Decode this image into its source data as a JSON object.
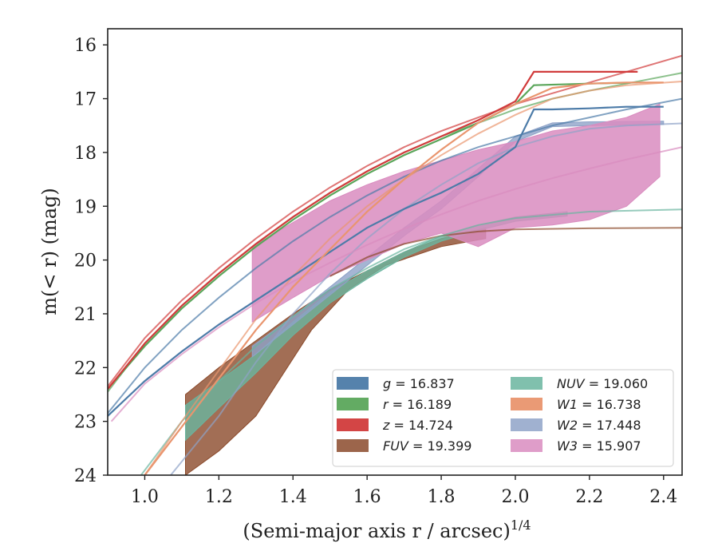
{
  "chart_data": {
    "type": "line",
    "xlabel": "(Semi-major axis r / arcsec)",
    "xlabel_exponent": "1/4",
    "ylabel": "m(< r) (mag)",
    "xlim": [
      0.9,
      2.45
    ],
    "ylim": [
      24,
      15.7
    ],
    "y_inverted": true,
    "xticks": [
      "1.0",
      "1.2",
      "1.4",
      "1.6",
      "1.8",
      "2.0",
      "2.2",
      "2.4"
    ],
    "xtick_values": [
      1.0,
      1.2,
      1.4,
      1.6,
      1.8,
      2.0,
      2.2,
      2.4
    ],
    "yticks": [
      "16",
      "17",
      "18",
      "19",
      "20",
      "21",
      "22",
      "23",
      "24"
    ],
    "ytick_values": [
      16,
      17,
      18,
      19,
      20,
      21,
      22,
      23,
      24
    ],
    "grid": false,
    "legend_placement": "lower-right",
    "series": [
      {
        "band": "g",
        "value": "16.837",
        "color": "#4c7ba8",
        "data": [
          [
            0.9,
            22.9
          ],
          [
            1.0,
            22.25
          ],
          [
            1.1,
            21.7
          ],
          [
            1.2,
            21.2
          ],
          [
            1.3,
            20.75
          ],
          [
            1.4,
            20.3
          ],
          [
            1.5,
            19.85
          ],
          [
            1.6,
            19.4
          ],
          [
            1.7,
            19.05
          ],
          [
            1.8,
            18.75
          ],
          [
            1.9,
            18.4
          ],
          [
            2.0,
            17.9
          ],
          [
            2.05,
            17.2
          ],
          [
            2.1,
            17.2
          ],
          [
            2.2,
            17.18
          ],
          [
            2.3,
            17.15
          ],
          [
            2.4,
            17.15
          ]
        ],
        "model": [
          [
            0.9,
            22.85
          ],
          [
            1.0,
            22.0
          ],
          [
            1.1,
            21.3
          ],
          [
            1.2,
            20.7
          ],
          [
            1.3,
            20.15
          ],
          [
            1.4,
            19.65
          ],
          [
            1.5,
            19.2
          ],
          [
            1.6,
            18.8
          ],
          [
            1.7,
            18.45
          ],
          [
            1.8,
            18.15
          ],
          [
            1.9,
            17.9
          ],
          [
            2.0,
            17.7
          ],
          [
            2.1,
            17.5
          ],
          [
            2.2,
            17.35
          ],
          [
            2.3,
            17.2
          ],
          [
            2.45,
            17.0
          ]
        ]
      },
      {
        "band": "r",
        "value": "16.189",
        "color": "#5ba65b",
        "data": [
          [
            0.9,
            22.4
          ],
          [
            1.0,
            21.6
          ],
          [
            1.1,
            20.9
          ],
          [
            1.2,
            20.3
          ],
          [
            1.3,
            19.75
          ],
          [
            1.4,
            19.25
          ],
          [
            1.5,
            18.8
          ],
          [
            1.6,
            18.4
          ],
          [
            1.7,
            18.05
          ],
          [
            1.8,
            17.75
          ],
          [
            1.9,
            17.45
          ],
          [
            2.0,
            17.1
          ],
          [
            2.05,
            16.75
          ],
          [
            2.2,
            16.72
          ],
          [
            2.33,
            16.7
          ]
        ],
        "model": [
          [
            0.9,
            22.45
          ],
          [
            1.0,
            21.55
          ],
          [
            1.1,
            20.85
          ],
          [
            1.2,
            20.25
          ],
          [
            1.3,
            19.7
          ],
          [
            1.4,
            19.2
          ],
          [
            1.5,
            18.75
          ],
          [
            1.6,
            18.35
          ],
          [
            1.7,
            18.0
          ],
          [
            1.8,
            17.7
          ],
          [
            1.9,
            17.45
          ],
          [
            2.0,
            17.2
          ],
          [
            2.1,
            17.0
          ],
          [
            2.2,
            16.85
          ],
          [
            2.3,
            16.72
          ],
          [
            2.45,
            16.52
          ]
        ]
      },
      {
        "band": "z",
        "value": "14.724",
        "color": "#d13b3b",
        "data": [
          [
            0.9,
            22.4
          ],
          [
            1.0,
            21.55
          ],
          [
            1.1,
            20.85
          ],
          [
            1.2,
            20.25
          ],
          [
            1.3,
            19.7
          ],
          [
            1.4,
            19.2
          ],
          [
            1.5,
            18.75
          ],
          [
            1.6,
            18.35
          ],
          [
            1.7,
            18.0
          ],
          [
            1.8,
            17.7
          ],
          [
            1.9,
            17.4
          ],
          [
            2.0,
            17.05
          ],
          [
            2.05,
            16.5
          ],
          [
            2.33,
            16.5
          ]
        ],
        "model": [
          [
            0.9,
            22.35
          ],
          [
            1.0,
            21.45
          ],
          [
            1.1,
            20.75
          ],
          [
            1.2,
            20.15
          ],
          [
            1.3,
            19.6
          ],
          [
            1.4,
            19.1
          ],
          [
            1.5,
            18.65
          ],
          [
            1.6,
            18.25
          ],
          [
            1.7,
            17.9
          ],
          [
            1.8,
            17.6
          ],
          [
            1.9,
            17.35
          ],
          [
            2.0,
            17.1
          ],
          [
            2.1,
            16.9
          ],
          [
            2.2,
            16.7
          ],
          [
            2.3,
            16.5
          ],
          [
            2.45,
            16.2
          ]
        ]
      },
      {
        "band": "FUV",
        "value": "19.399",
        "color": "#8b4a2b",
        "band_upper": [
          [
            1.11,
            22.5
          ],
          [
            1.2,
            22.0
          ],
          [
            1.3,
            21.5
          ],
          [
            1.4,
            21.0
          ],
          [
            1.5,
            20.55
          ],
          [
            1.6,
            20.2
          ],
          [
            1.7,
            19.85
          ],
          [
            1.8,
            19.6
          ],
          [
            1.92,
            19.4
          ]
        ],
        "band_lower": [
          [
            1.11,
            24.0
          ],
          [
            1.2,
            23.55
          ],
          [
            1.3,
            22.9
          ],
          [
            1.45,
            21.3
          ],
          [
            1.55,
            20.55
          ],
          [
            1.65,
            20.1
          ],
          [
            1.8,
            19.75
          ],
          [
            1.92,
            19.6
          ]
        ],
        "model": [
          [
            1.5,
            20.3
          ],
          [
            1.6,
            19.95
          ],
          [
            1.7,
            19.7
          ],
          [
            1.8,
            19.55
          ],
          [
            1.9,
            19.47
          ],
          [
            2.0,
            19.43
          ],
          [
            2.2,
            19.41
          ],
          [
            2.45,
            19.4
          ]
        ]
      },
      {
        "band": "NUV",
        "value": "19.060",
        "color": "#6ab59f",
        "band_upper": [
          [
            1.11,
            22.7
          ],
          [
            1.2,
            22.25
          ],
          [
            1.3,
            21.75
          ],
          [
            1.4,
            21.15
          ],
          [
            1.5,
            20.6
          ],
          [
            1.6,
            20.2
          ],
          [
            1.7,
            19.85
          ],
          [
            1.8,
            19.55
          ],
          [
            1.9,
            19.35
          ],
          [
            2.0,
            19.2
          ],
          [
            2.14,
            19.1
          ]
        ],
        "band_lower": [
          [
            1.11,
            23.35
          ],
          [
            1.2,
            22.75
          ],
          [
            1.3,
            22.1
          ],
          [
            1.4,
            21.4
          ],
          [
            1.5,
            20.8
          ],
          [
            1.6,
            20.35
          ],
          [
            1.7,
            19.95
          ],
          [
            1.8,
            19.65
          ],
          [
            1.9,
            19.45
          ],
          [
            2.0,
            19.28
          ],
          [
            2.14,
            19.18
          ]
        ],
        "model": [
          [
            0.99,
            24.0
          ],
          [
            1.1,
            23.0
          ],
          [
            1.2,
            22.25
          ],
          [
            1.3,
            21.6
          ],
          [
            1.4,
            21.05
          ],
          [
            1.5,
            20.55
          ],
          [
            1.6,
            20.15
          ],
          [
            1.7,
            19.8
          ],
          [
            1.8,
            19.55
          ],
          [
            1.9,
            19.35
          ],
          [
            2.0,
            19.22
          ],
          [
            2.2,
            19.1
          ],
          [
            2.45,
            19.06
          ]
        ]
      },
      {
        "band": "W1",
        "value": "16.738",
        "color": "#e9956e",
        "data": [
          [
            1.0,
            24.0
          ],
          [
            1.1,
            23.1
          ],
          [
            1.2,
            22.2
          ],
          [
            1.3,
            21.3
          ],
          [
            1.4,
            20.5
          ],
          [
            1.5,
            19.8
          ],
          [
            1.6,
            19.1
          ],
          [
            1.7,
            18.5
          ],
          [
            1.8,
            17.95
          ],
          [
            1.9,
            17.45
          ],
          [
            2.0,
            17.1
          ],
          [
            2.1,
            16.8
          ],
          [
            2.2,
            16.72
          ],
          [
            2.3,
            16.7
          ],
          [
            2.4,
            16.7
          ]
        ],
        "model": [
          [
            1.0,
            24.0
          ],
          [
            1.1,
            23.0
          ],
          [
            1.2,
            22.05
          ],
          [
            1.3,
            21.1
          ],
          [
            1.4,
            20.3
          ],
          [
            1.5,
            19.6
          ],
          [
            1.6,
            19.0
          ],
          [
            1.7,
            18.5
          ],
          [
            1.8,
            18.05
          ],
          [
            1.9,
            17.65
          ],
          [
            2.0,
            17.3
          ],
          [
            2.1,
            17.0
          ],
          [
            2.2,
            16.85
          ],
          [
            2.3,
            16.75
          ],
          [
            2.45,
            16.68
          ]
        ]
      },
      {
        "band": "W2",
        "value": "17.448",
        "color": "#8fa3c8",
        "band_upper": [
          [
            1.29,
            21.6
          ],
          [
            1.4,
            21.05
          ],
          [
            1.5,
            20.5
          ],
          [
            1.6,
            19.95
          ],
          [
            1.7,
            19.4
          ],
          [
            1.8,
            18.9
          ],
          [
            1.9,
            18.3
          ],
          [
            2.0,
            17.7
          ],
          [
            2.1,
            17.45
          ],
          [
            2.2,
            17.43
          ],
          [
            2.4,
            17.42
          ]
        ],
        "band_lower": [
          [
            1.29,
            21.8
          ],
          [
            1.4,
            21.2
          ],
          [
            1.5,
            20.65
          ],
          [
            1.6,
            20.1
          ],
          [
            1.7,
            19.55
          ],
          [
            1.8,
            19.05
          ],
          [
            1.9,
            18.45
          ],
          [
            2.0,
            17.8
          ],
          [
            2.1,
            17.52
          ],
          [
            2.2,
            17.5
          ],
          [
            2.4,
            17.48
          ]
        ],
        "model": [
          [
            1.07,
            24.0
          ],
          [
            1.2,
            22.9
          ],
          [
            1.3,
            21.9
          ],
          [
            1.4,
            21.0
          ],
          [
            1.5,
            20.25
          ],
          [
            1.6,
            19.6
          ],
          [
            1.7,
            19.05
          ],
          [
            1.8,
            18.6
          ],
          [
            1.9,
            18.2
          ],
          [
            2.0,
            17.9
          ],
          [
            2.1,
            17.7
          ],
          [
            2.2,
            17.56
          ],
          [
            2.3,
            17.5
          ],
          [
            2.45,
            17.46
          ]
        ]
      },
      {
        "band": "W3",
        "value": "15.907",
        "color": "#d98cbf",
        "band_upper": [
          [
            1.29,
            19.75
          ],
          [
            1.4,
            19.3
          ],
          [
            1.5,
            18.9
          ],
          [
            1.6,
            18.6
          ],
          [
            1.7,
            18.35
          ],
          [
            1.8,
            18.15
          ],
          [
            1.9,
            17.95
          ],
          [
            2.0,
            17.8
          ],
          [
            2.1,
            17.6
          ],
          [
            2.2,
            17.5
          ],
          [
            2.3,
            17.35
          ],
          [
            2.39,
            17.1
          ]
        ],
        "band_lower": [
          [
            1.29,
            21.15
          ],
          [
            1.4,
            20.7
          ],
          [
            1.5,
            20.3
          ],
          [
            1.6,
            20.0
          ],
          [
            1.7,
            19.7
          ],
          [
            1.8,
            19.5
          ],
          [
            1.9,
            19.75
          ],
          [
            2.0,
            19.4
          ],
          [
            2.1,
            19.35
          ],
          [
            2.2,
            19.25
          ],
          [
            2.3,
            19.0
          ],
          [
            2.39,
            18.45
          ]
        ],
        "model": [
          [
            0.91,
            23.0
          ],
          [
            1.0,
            22.3
          ],
          [
            1.1,
            21.75
          ],
          [
            1.2,
            21.25
          ],
          [
            1.3,
            20.8
          ],
          [
            1.4,
            20.4
          ],
          [
            1.5,
            20.05
          ],
          [
            1.6,
            19.72
          ],
          [
            1.7,
            19.42
          ],
          [
            1.8,
            19.15
          ],
          [
            1.9,
            18.9
          ],
          [
            2.0,
            18.68
          ],
          [
            2.1,
            18.48
          ],
          [
            2.2,
            18.3
          ],
          [
            2.3,
            18.13
          ],
          [
            2.45,
            17.9
          ]
        ]
      }
    ]
  }
}
